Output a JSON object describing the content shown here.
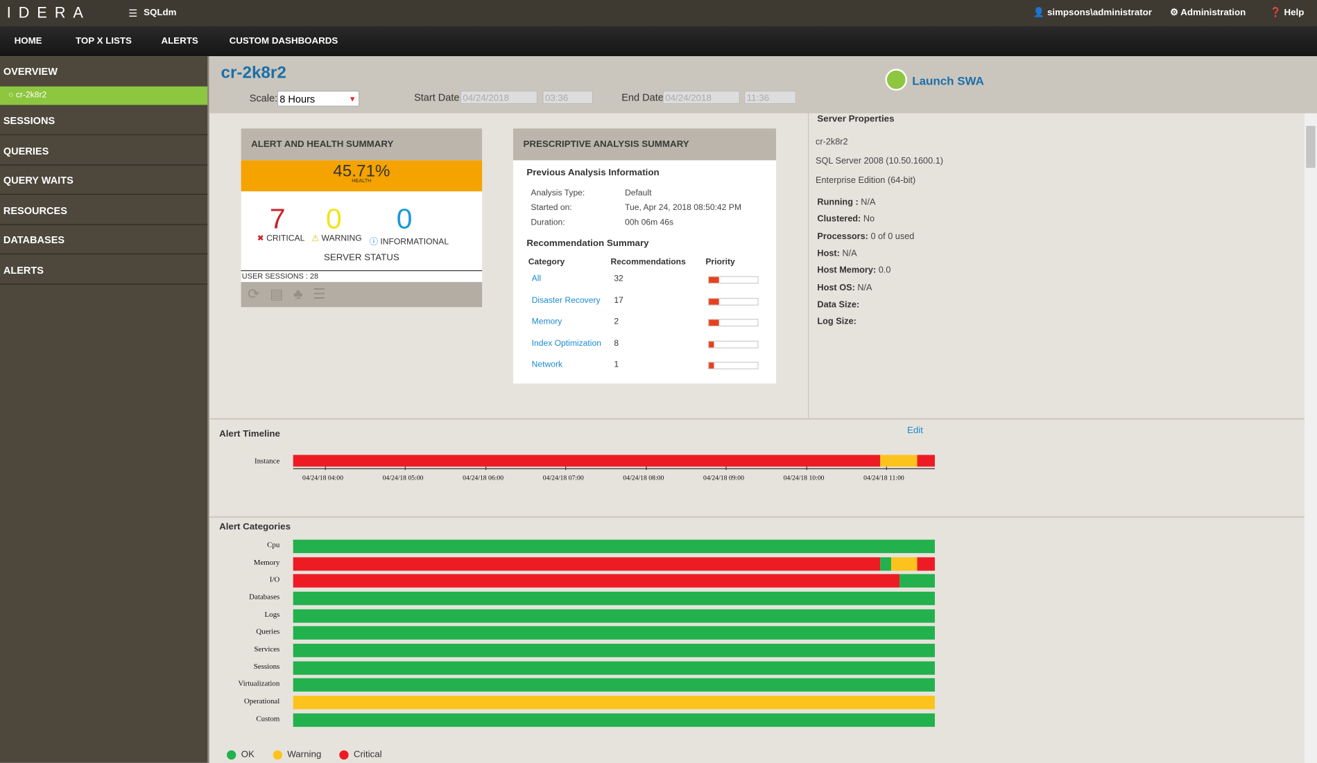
{
  "topbar": {
    "logo": "IDERA",
    "product": "SQLdm",
    "user": "simpsons\\administrator",
    "admin": "Administration",
    "help": "Help"
  },
  "nav": [
    "HOME",
    "TOP X LISTS",
    "ALERTS",
    "CUSTOM DASHBOARDS"
  ],
  "sidebar": {
    "overview": "OVERVIEW",
    "selected": "cr-2k8r2",
    "items": [
      "SESSIONS",
      "QUERIES",
      "QUERY WAITS",
      "RESOURCES",
      "DATABASES",
      "ALERTS"
    ]
  },
  "header": {
    "title": "cr-2k8r2",
    "scale_label": "Scale:",
    "scale": "8 Hours",
    "start_label": "Start Date:",
    "start_date": "04/24/2018",
    "start_time": "03:36",
    "end_label": "End Date:",
    "end_date": "04/24/2018",
    "end_time": "11:36",
    "launch": "Launch SWA"
  },
  "health": {
    "title": "ALERT AND HEALTH SUMMARY",
    "health": "45.71%",
    "health_label": "HEALTH",
    "critical": "7",
    "critical_label": "CRITICAL",
    "warning": "0",
    "warning_label": "WARNING",
    "informational": "0",
    "informational_label": "INFORMATIONAL",
    "server_status": "SERVER STATUS",
    "user_sessions": "USER SESSIONS : 28"
  },
  "analysis": {
    "title": "PRESCRIPTIVE ANALYSIS SUMMARY",
    "previous": "Previous Analysis Information",
    "type_label": "Analysis Type:",
    "type": "Default",
    "started_label": "Started on:",
    "started": "Tue, Apr 24, 2018 08:50:42 PM",
    "duration_label": "Duration:",
    "duration": "00h 06m 46s",
    "summary": "Recommendation Summary",
    "columns": [
      "Category",
      "Recommendations",
      "Priority"
    ],
    "rows": [
      [
        "All",
        "32"
      ],
      [
        "Disaster Recovery",
        "17"
      ],
      [
        "Memory",
        "2"
      ],
      [
        "Index Optimization",
        "8"
      ],
      [
        "Network",
        "1"
      ]
    ]
  },
  "properties": {
    "title": "Server Properties",
    "lines": [
      "cr-2k8r2",
      "SQL Server 2008 (10.50.1600.1)",
      "Enterprise Edition (64-bit)"
    ],
    "fields": [
      [
        "Running :",
        "N/A"
      ],
      [
        "Clustered:",
        "No"
      ],
      [
        "Processors:",
        "0 of 0 used"
      ],
      [
        "Host:",
        "N/A"
      ],
      [
        "Host Memory:",
        "0.0"
      ],
      [
        "Host OS:",
        "N/A"
      ],
      [
        "Data Size:",
        ""
      ],
      [
        "Log Size:",
        ""
      ]
    ]
  },
  "timeline": {
    "title": "Alert Timeline",
    "edit": "Edit",
    "row": "Instance",
    "ticks": [
      "04/24/18 04:00",
      "04/24/18 05:00",
      "04/24/18 06:00",
      "04/24/18 07:00",
      "04/24/18 08:00",
      "04/24/18 09:00",
      "04/24/18 10:00",
      "04/24/18 11:00"
    ]
  },
  "categories": {
    "title": "Alert Categories",
    "rows": [
      "Cpu",
      "Memory",
      "I/O",
      "Databases",
      "Logs",
      "Queries",
      "Services",
      "Sessions",
      "Virtualization",
      "Operational",
      "Custom"
    ]
  },
  "legend": [
    "OK",
    "Warning",
    "Critical"
  ]
}
